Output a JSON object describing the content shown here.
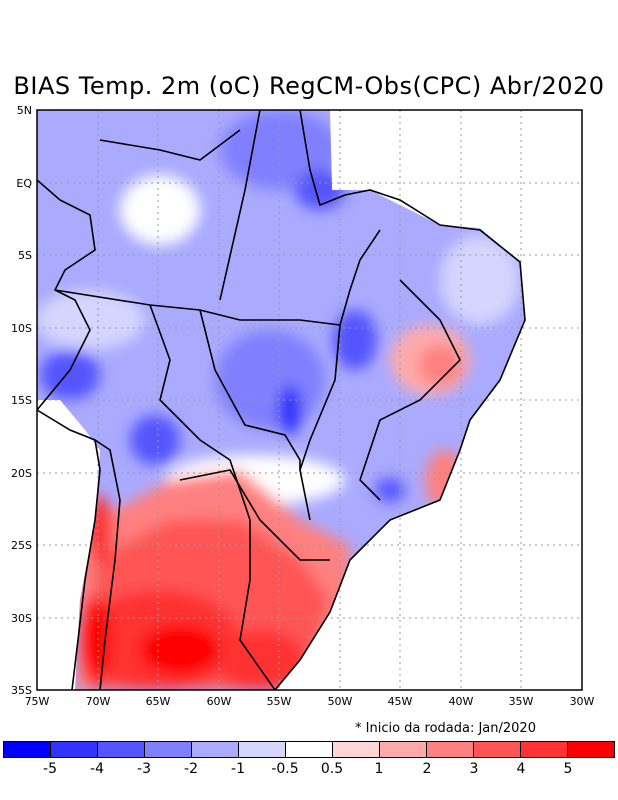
{
  "title": "BIAS Temp. 2m (oC) RegCM-Obs(CPC) Abr/2020",
  "lat_ticks": [
    "5N",
    "EQ",
    "5S",
    "10S",
    "15S",
    "20S",
    "25S",
    "30S",
    "35S"
  ],
  "lon_ticks": [
    "75W",
    "70W",
    "65W",
    "60W",
    "55W",
    "50W",
    "45W",
    "40W",
    "35W",
    "30W"
  ],
  "note": "* Inicio da rodada: Jan/2020",
  "colorbar": {
    "colors": [
      "#0000ff",
      "#3333ff",
      "#5555ff",
      "#8080ff",
      "#aaaaff",
      "#d5d5ff",
      "#ffffff",
      "#ffd5d5",
      "#ffaaaa",
      "#ff8080",
      "#ff5555",
      "#ff3333",
      "#ff0000"
    ],
    "labels": [
      "-5",
      "-4",
      "-3",
      "-2",
      "-1",
      "-0.5",
      "0.5",
      "1",
      "2",
      "3",
      "4",
      "5"
    ]
  }
}
